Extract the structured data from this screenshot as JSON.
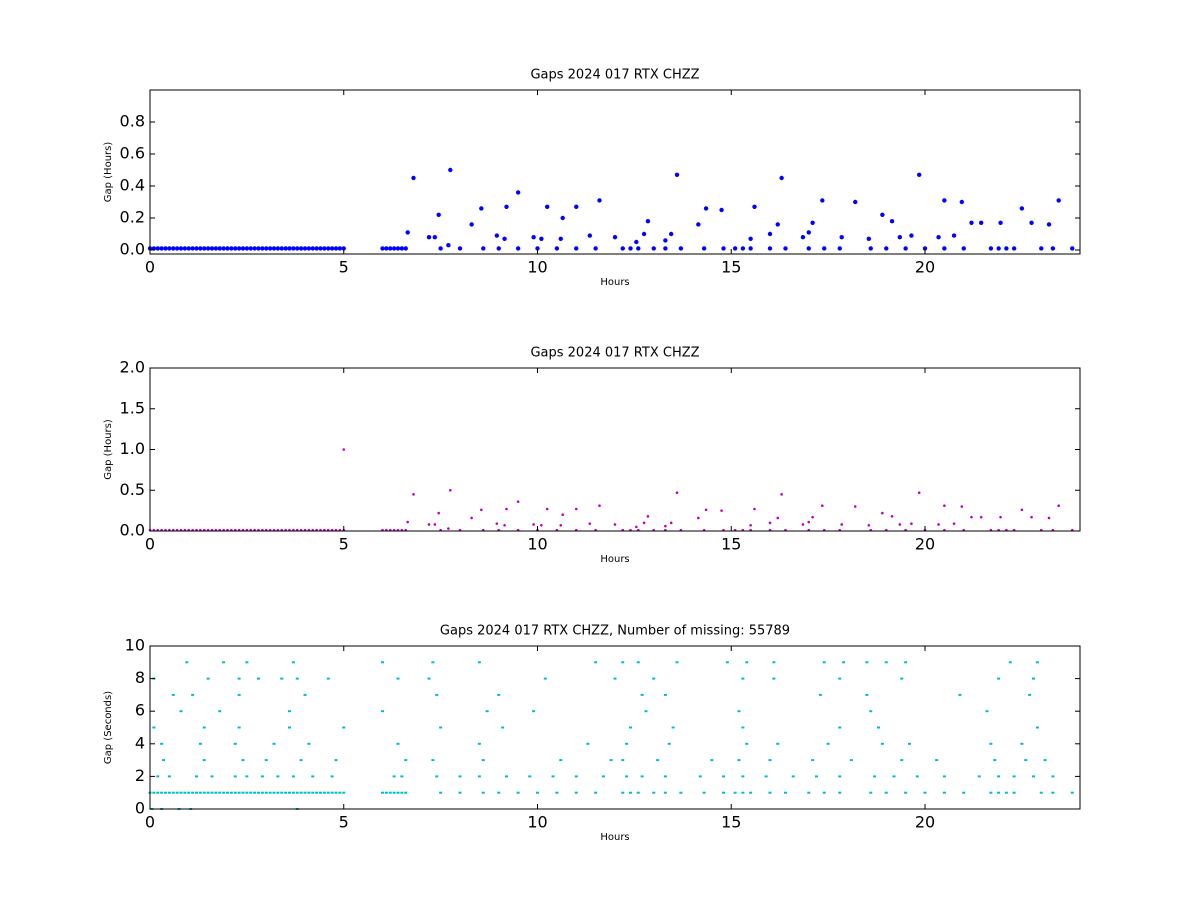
{
  "chart_data": [
    {
      "type": "scatter",
      "title": "Gaps 2024 017 RTX  CHZZ",
      "xlabel": "Hours",
      "ylabel": "Gap (Hours)",
      "color": "#0000ff",
      "xlim": [
        0,
        24
      ],
      "xticks": [
        0,
        5,
        10,
        15,
        20
      ],
      "ylim": [
        -0.025,
        1.0
      ],
      "yticks": [
        {
          "value": 0,
          "label": "0.0"
        },
        0.2,
        0.4,
        0.6,
        0.8
      ],
      "x": [
        0,
        0.1,
        0.2,
        0.3,
        0.4,
        0.5,
        0.6,
        0.7,
        0.8,
        0.9,
        1,
        1.1,
        1.2,
        1.3,
        1.4,
        1.5,
        1.6,
        1.7,
        1.8,
        1.9,
        2,
        2.1,
        2.2,
        2.3,
        2.4,
        2.5,
        2.6,
        2.7,
        2.8,
        2.9,
        3,
        3.1,
        3.2,
        3.3,
        3.4,
        3.5,
        3.6,
        3.7,
        3.8,
        3.9,
        4,
        4.1,
        4.2,
        4.3,
        4.4,
        4.5,
        4.6,
        4.7,
        4.8,
        4.9,
        5,
        6,
        6.1,
        6.2,
        6.3,
        6.4,
        6.5,
        6.6,
        7.5,
        8,
        8.6,
        9,
        9.5,
        10,
        10.5,
        11,
        11.5,
        12.2,
        12.4,
        12.6,
        13,
        13.3,
        13.7,
        14.3,
        14.8,
        15.1,
        15.3,
        15.5,
        16,
        16.4,
        17,
        17.4,
        17.8,
        18.6,
        19,
        19.5,
        20,
        20.5,
        21,
        21.7,
        21.9,
        22.1,
        22.3,
        23,
        23.3,
        23.8,
        6.65,
        6.8,
        7.2,
        7.35,
        7.45,
        7.7,
        7.75,
        8.3,
        8.55,
        8.95,
        9.15,
        9.2,
        9.5,
        9.9,
        10.1,
        10.25,
        10.6,
        10.65,
        11,
        11.35,
        11.6,
        12,
        12.55,
        12.75,
        12.85,
        13.3,
        13.45,
        13.6,
        14.15,
        14.35,
        14.75,
        15.5,
        15.6,
        16,
        16.2,
        16.3,
        16.85,
        17,
        17.1,
        17.35,
        17.85,
        18.2,
        18.55,
        18.9,
        19.15,
        19.35,
        19.65,
        19.85,
        20.35,
        20.5,
        20.75,
        20.95,
        21.2,
        21.45,
        21.95,
        22.5,
        22.75,
        23.2,
        23.45
      ],
      "values": [
        0.01,
        0.01,
        0.01,
        0.01,
        0.01,
        0.01,
        0.01,
        0.01,
        0.01,
        0.01,
        0.01,
        0.01,
        0.01,
        0.01,
        0.01,
        0.01,
        0.01,
        0.01,
        0.01,
        0.01,
        0.01,
        0.01,
        0.01,
        0.01,
        0.01,
        0.01,
        0.01,
        0.01,
        0.01,
        0.01,
        0.01,
        0.01,
        0.01,
        0.01,
        0.01,
        0.01,
        0.01,
        0.01,
        0.01,
        0.01,
        0.01,
        0.01,
        0.01,
        0.01,
        0.01,
        0.01,
        0.01,
        0.01,
        0.01,
        0.01,
        0.01,
        0.01,
        0.01,
        0.01,
        0.01,
        0.01,
        0.01,
        0.01,
        0.01,
        0.01,
        0.01,
        0.01,
        0.01,
        0.01,
        0.01,
        0.01,
        0.01,
        0.01,
        0.01,
        0.01,
        0.01,
        0.01,
        0.01,
        0.01,
        0.01,
        0.01,
        0.01,
        0.01,
        0.01,
        0.01,
        0.01,
        0.01,
        0.01,
        0.01,
        0.01,
        0.01,
        0.01,
        0.01,
        0.01,
        0.01,
        0.01,
        0.01,
        0.01,
        0.01,
        0.01,
        0.01,
        0.11,
        0.45,
        0.08,
        0.08,
        0.22,
        0.03,
        0.5,
        0.16,
        0.26,
        0.09,
        0.07,
        0.27,
        0.36,
        0.08,
        0.07,
        0.27,
        0.07,
        0.2,
        0.27,
        0.09,
        0.31,
        0.08,
        0.05,
        0.1,
        0.18,
        0.06,
        0.1,
        0.47,
        0.16,
        0.26,
        0.25,
        0.07,
        0.27,
        0.1,
        0.16,
        0.45,
        0.08,
        0.11,
        0.17,
        0.31,
        0.08,
        0.3,
        0.07,
        0.22,
        0.18,
        0.08,
        0.09,
        0.47,
        0.08,
        0.31,
        0.09,
        0.3,
        0.17,
        0.17,
        0.17,
        0.26,
        0.17,
        0.16,
        0.31
      ]
    },
    {
      "type": "scatter",
      "title": "Gaps 2024 017 RTX  CHZZ",
      "xlabel": "Hours",
      "ylabel": "Gap (Hours)",
      "color": "#bf00bf",
      "xlim": [
        0,
        24
      ],
      "xticks": [
        0,
        5,
        10,
        15,
        20
      ],
      "ylim": [
        0,
        2
      ],
      "yticks": [
        {
          "value": 0,
          "label": "0.0"
        },
        0.5,
        {
          "value": 1,
          "label": "1.0"
        },
        1.5,
        {
          "value": 2,
          "label": "2.0"
        }
      ],
      "x": [
        0,
        0.1,
        0.2,
        0.3,
        0.4,
        0.5,
        0.6,
        0.7,
        0.8,
        0.9,
        1,
        1.1,
        1.2,
        1.3,
        1.4,
        1.5,
        1.6,
        1.7,
        1.8,
        1.9,
        2,
        2.1,
        2.2,
        2.3,
        2.4,
        2.5,
        2.6,
        2.7,
        2.8,
        2.9,
        3,
        3.1,
        3.2,
        3.3,
        3.4,
        3.5,
        3.6,
        3.7,
        3.8,
        3.9,
        4,
        4.1,
        4.2,
        4.3,
        4.4,
        4.5,
        4.6,
        4.7,
        4.8,
        4.9,
        5,
        6,
        6.1,
        6.2,
        6.3,
        6.4,
        6.5,
        6.6,
        7.5,
        8,
        8.6,
        9,
        9.5,
        10,
        10.5,
        11,
        11.5,
        12.2,
        12.4,
        12.6,
        13,
        13.3,
        13.7,
        14.3,
        14.8,
        15.1,
        15.3,
        15.5,
        16,
        16.4,
        17,
        17.4,
        17.8,
        18.6,
        19,
        19.5,
        20,
        20.5,
        21,
        21.7,
        21.9,
        22.1,
        22.3,
        23,
        23.3,
        23.8,
        6.65,
        6.8,
        7.2,
        7.35,
        7.45,
        7.7,
        7.75,
        8.3,
        8.55,
        8.95,
        9.15,
        9.2,
        9.5,
        9.9,
        10.1,
        10.25,
        10.6,
        10.65,
        11,
        11.35,
        11.6,
        12,
        12.55,
        12.75,
        12.85,
        13.3,
        13.45,
        13.6,
        14.15,
        14.35,
        14.75,
        15.5,
        15.6,
        16,
        16.2,
        16.3,
        16.85,
        17,
        17.1,
        17.35,
        17.85,
        18.2,
        18.55,
        18.9,
        19.15,
        19.35,
        19.65,
        19.85,
        20.35,
        20.5,
        20.75,
        20.95,
        21.2,
        21.45,
        21.95,
        22.5,
        22.75,
        23.2,
        23.45,
        5
      ],
      "values": [
        0.01,
        0.01,
        0.01,
        0.01,
        0.01,
        0.01,
        0.01,
        0.01,
        0.01,
        0.01,
        0.01,
        0.01,
        0.01,
        0.01,
        0.01,
        0.01,
        0.01,
        0.01,
        0.01,
        0.01,
        0.01,
        0.01,
        0.01,
        0.01,
        0.01,
        0.01,
        0.01,
        0.01,
        0.01,
        0.01,
        0.01,
        0.01,
        0.01,
        0.01,
        0.01,
        0.01,
        0.01,
        0.01,
        0.01,
        0.01,
        0.01,
        0.01,
        0.01,
        0.01,
        0.01,
        0.01,
        0.01,
        0.01,
        0.01,
        0.01,
        0.01,
        0.01,
        0.01,
        0.01,
        0.01,
        0.01,
        0.01,
        0.01,
        0.01,
        0.01,
        0.01,
        0.01,
        0.01,
        0.01,
        0.01,
        0.01,
        0.01,
        0.01,
        0.01,
        0.01,
        0.01,
        0.01,
        0.01,
        0.01,
        0.01,
        0.01,
        0.01,
        0.01,
        0.01,
        0.01,
        0.01,
        0.01,
        0.01,
        0.01,
        0.01,
        0.01,
        0.01,
        0.01,
        0.01,
        0.01,
        0.01,
        0.01,
        0.01,
        0.01,
        0.01,
        0.01,
        0.11,
        0.45,
        0.08,
        0.08,
        0.22,
        0.03,
        0.5,
        0.16,
        0.26,
        0.09,
        0.07,
        0.27,
        0.36,
        0.08,
        0.07,
        0.27,
        0.07,
        0.2,
        0.27,
        0.09,
        0.31,
        0.08,
        0.05,
        0.1,
        0.18,
        0.06,
        0.1,
        0.47,
        0.16,
        0.26,
        0.25,
        0.07,
        0.27,
        0.1,
        0.16,
        0.45,
        0.08,
        0.11,
        0.17,
        0.31,
        0.08,
        0.3,
        0.07,
        0.22,
        0.18,
        0.08,
        0.09,
        0.47,
        0.08,
        0.31,
        0.09,
        0.3,
        0.17,
        0.17,
        0.17,
        0.26,
        0.17,
        0.16,
        0.31,
        1
      ]
    },
    {
      "type": "scatter",
      "title": "Gaps 2024 017 RTX  CHZZ, Number of missing: 55789",
      "xlabel": "Hours",
      "ylabel": "Gap (Seconds)",
      "color": "#00bfbf",
      "xlim": [
        0,
        24
      ],
      "xticks": [
        0,
        5,
        10,
        15,
        20
      ],
      "ylim": [
        0,
        10
      ],
      "yticks": [
        0,
        2,
        4,
        6,
        8,
        10
      ],
      "x": [
        0,
        0.1,
        0.2,
        0.3,
        0.4,
        0.5,
        0.6,
        0.7,
        0.8,
        0.9,
        1,
        1.1,
        1.2,
        1.3,
        1.4,
        1.5,
        1.6,
        1.7,
        1.8,
        1.9,
        2,
        2.1,
        2.2,
        2.3,
        2.4,
        2.5,
        2.6,
        2.7,
        2.8,
        2.9,
        3,
        3.1,
        3.2,
        3.3,
        3.4,
        3.5,
        3.6,
        3.7,
        3.8,
        3.9,
        4,
        4.1,
        4.2,
        4.3,
        4.4,
        4.5,
        4.6,
        4.7,
        4.8,
        4.9,
        5,
        6,
        6.1,
        6.2,
        6.3,
        6.4,
        6.5,
        6.6,
        7.5,
        8,
        8.6,
        9,
        9.5,
        10,
        10.5,
        11,
        11.5,
        12.2,
        12.4,
        12.6,
        13,
        13.3,
        13.7,
        14.3,
        14.8,
        15.1,
        15.3,
        15.5,
        16,
        16.4,
        17,
        17.4,
        17.8,
        18.6,
        19,
        19.5,
        20,
        20.5,
        21,
        21.7,
        21.9,
        22.1,
        22.3,
        23,
        23.3,
        23.8,
        0.05,
        0.3,
        0.75,
        1.05,
        3.8,
        0.2,
        0.5,
        1.2,
        1.6,
        2.2,
        2.5,
        2.9,
        3.3,
        3.7,
        4.2,
        4.7,
        6.3,
        6.5,
        7.4,
        8,
        8.5,
        9.2,
        9.8,
        10.4,
        11,
        11.7,
        12.3,
        12.7,
        13.3,
        14.2,
        14.8,
        15.3,
        15.9,
        16.6,
        17.2,
        17.8,
        18.7,
        19.2,
        19.8,
        20.5,
        21.4,
        21.9,
        22.3,
        22.8,
        23.3,
        0.35,
        1.4,
        2.4,
        3,
        3.9,
        4.8,
        6.6,
        7.3,
        8.6,
        10.6,
        11.9,
        12.2,
        13.1,
        14.5,
        15.2,
        16,
        17.1,
        18.1,
        19.4,
        20.3,
        21.8,
        22.6,
        23.1,
        0.3,
        1.3,
        2.2,
        3.2,
        4.1,
        6.4,
        8.5,
        11.3,
        12.3,
        13.4,
        15.4,
        16.2,
        17.5,
        18.9,
        19.6,
        21.7,
        22.5,
        0.1,
        1.4,
        2.3,
        3.6,
        5,
        7.5,
        9.1,
        12.4,
        13.5,
        15.3,
        17.8,
        18.8,
        22.9,
        0.8,
        1.8,
        3.6,
        6,
        8.7,
        9.9,
        12.8,
        15.2,
        18.6,
        21.6,
        0.6,
        1.1,
        2.3,
        4,
        7.4,
        9,
        12.7,
        13.3,
        17.3,
        18.5,
        20.9,
        22.7,
        0.1,
        1.5,
        2.3,
        2.8,
        3.4,
        3.8,
        4.6,
        6.4,
        7.2,
        10.2,
        12,
        13,
        15.3,
        16.1,
        17.8,
        19.4,
        21.9,
        22.8,
        0.95,
        1.9,
        2.5,
        3.7,
        6,
        7.3,
        8.5,
        11.5,
        12.2,
        12.6,
        13.6,
        14.9,
        15.4,
        16.1,
        17.4,
        17.9,
        18.5,
        19,
        19.5,
        22.2,
        22.9
      ],
      "values": [
        1,
        1,
        1,
        1,
        1,
        1,
        1,
        1,
        1,
        1,
        1,
        1,
        1,
        1,
        1,
        1,
        1,
        1,
        1,
        1,
        1,
        1,
        1,
        1,
        1,
        1,
        1,
        1,
        1,
        1,
        1,
        1,
        1,
        1,
        1,
        1,
        1,
        1,
        1,
        1,
        1,
        1,
        1,
        1,
        1,
        1,
        1,
        1,
        1,
        1,
        1,
        1,
        1,
        1,
        1,
        1,
        1,
        1,
        1,
        1,
        1,
        1,
        1,
        1,
        1,
        1,
        1,
        1,
        1,
        1,
        1,
        1,
        1,
        1,
        1,
        1,
        1,
        1,
        1,
        1,
        1,
        1,
        1,
        1,
        1,
        1,
        1,
        1,
        1,
        1,
        1,
        1,
        1,
        1,
        1,
        1,
        0,
        0,
        0,
        0,
        0,
        2,
        2,
        2,
        2,
        2,
        2,
        2,
        2,
        2,
        2,
        2,
        2,
        2,
        2,
        2,
        2,
        2,
        2,
        2,
        2,
        2,
        2,
        2,
        2,
        2,
        2,
        2,
        2,
        2,
        2,
        2,
        2,
        2,
        2,
        2,
        2,
        2,
        2,
        2,
        2,
        3,
        3,
        3,
        3,
        3,
        3,
        3,
        3,
        3,
        3,
        3,
        3,
        3,
        3,
        3,
        3,
        3,
        3,
        3,
        3,
        3,
        3,
        3,
        4,
        4,
        4,
        4,
        4,
        4,
        4,
        4,
        4,
        4,
        4,
        4,
        4,
        4,
        4,
        4,
        4,
        5,
        5,
        5,
        5,
        5,
        5,
        5,
        5,
        5,
        5,
        5,
        5,
        5,
        6,
        6,
        6,
        6,
        6,
        6,
        6,
        6,
        6,
        6,
        7,
        7,
        7,
        7,
        7,
        7,
        7,
        7,
        7,
        7,
        7,
        7,
        8,
        8,
        8,
        8,
        8,
        8,
        8,
        8,
        8,
        8,
        8,
        8,
        8,
        8,
        8,
        8,
        8,
        8,
        9,
        9,
        9,
        9,
        9,
        9,
        9,
        9,
        9,
        9,
        9,
        9,
        9,
        9,
        9,
        9,
        9,
        9,
        9,
        9,
        9
      ]
    }
  ]
}
